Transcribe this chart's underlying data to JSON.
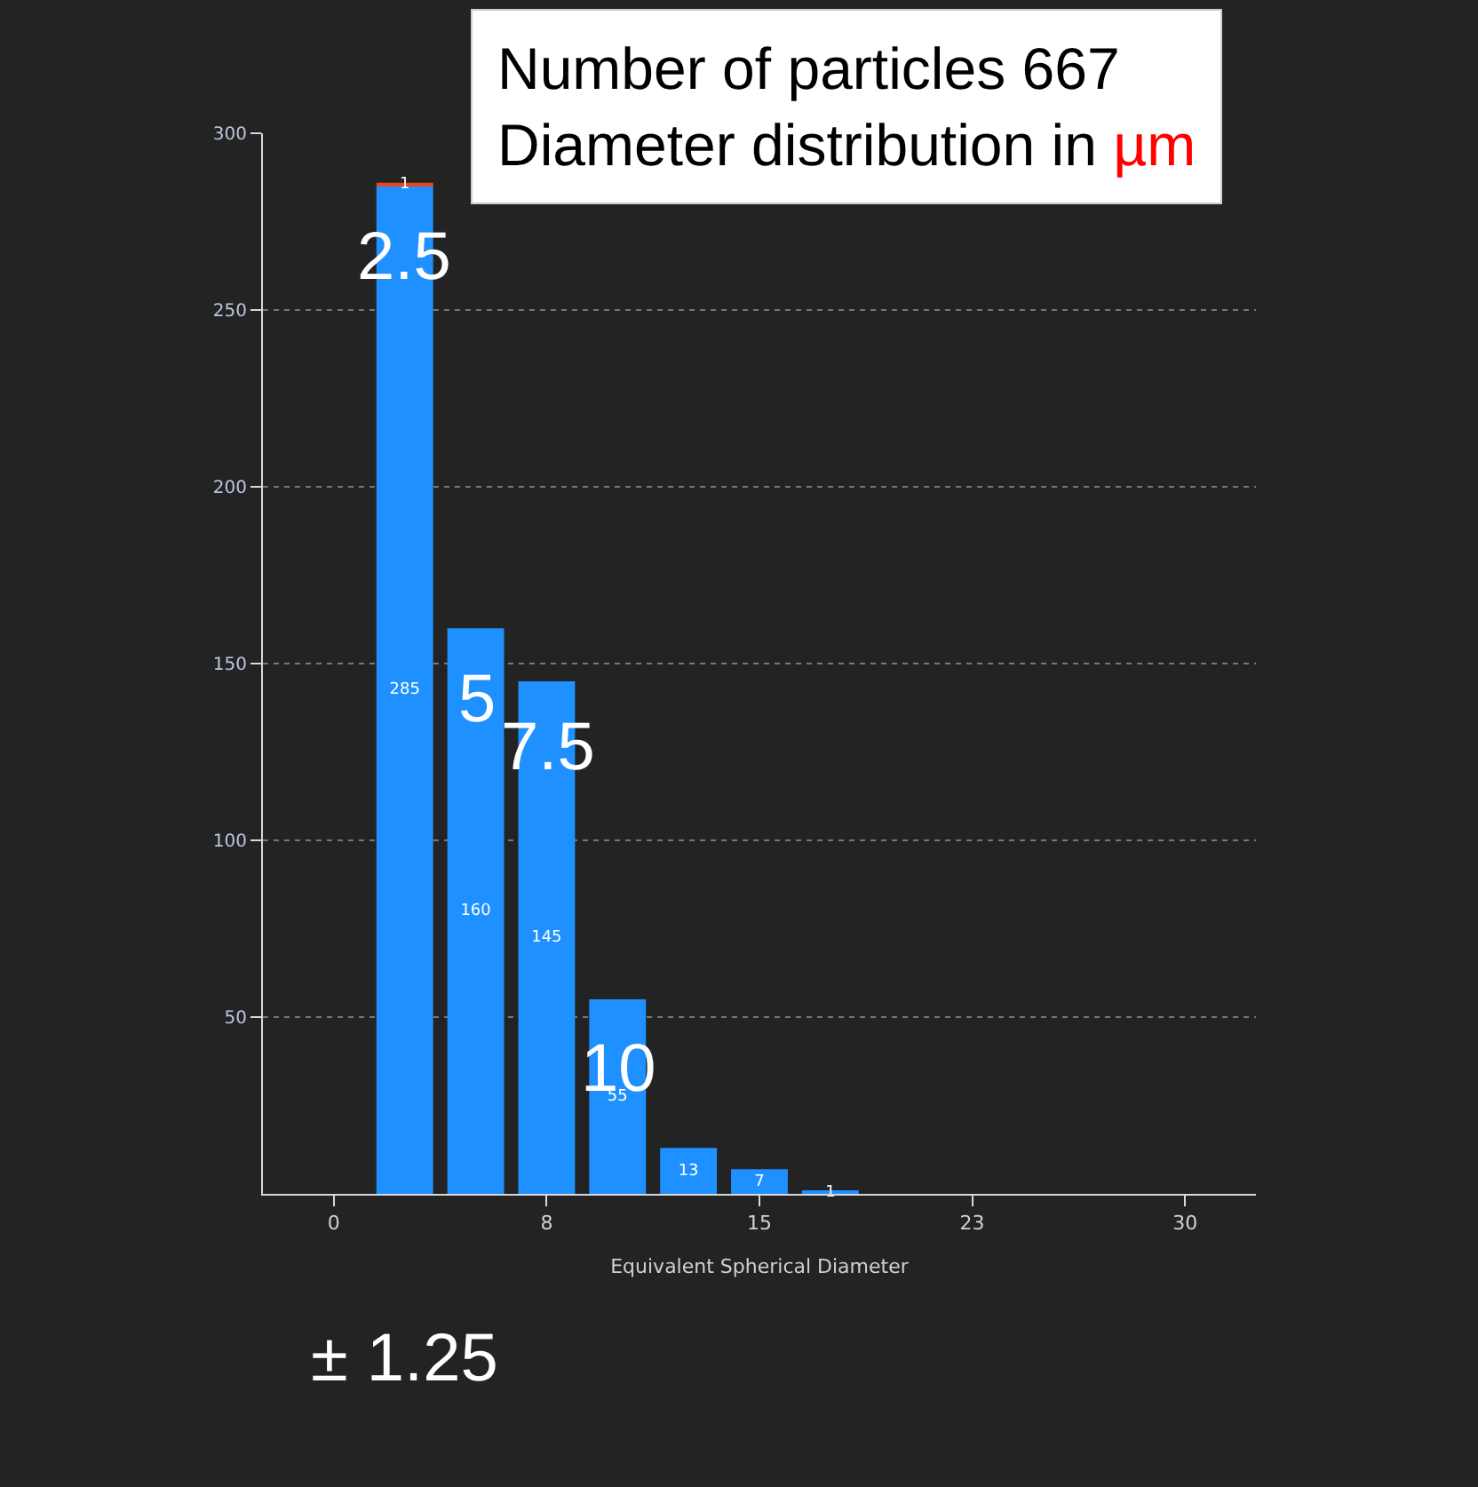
{
  "chart_data": {
    "type": "bar",
    "stacked": true,
    "title": "Number of particles 667",
    "subtitle": "Diameter distribution in µm",
    "xlabel": "Equivalent Spherical Diameter",
    "x": [
      2.5,
      5,
      7.5,
      10,
      12.5,
      15,
      17.5
    ],
    "series": [
      {
        "color": "#1e90ff",
        "values": [
          285,
          160,
          145,
          55,
          13,
          7,
          1
        ]
      },
      {
        "color": "#e8471c",
        "values": [
          1,
          null,
          null,
          null,
          null,
          null,
          null
        ]
      }
    ],
    "xlim": [
      -2.5,
      32.5
    ],
    "xticks": [
      0,
      {
        "value": 7.5,
        "label": "8"
      },
      15,
      {
        "value": 22.5,
        "label": "23"
      },
      30
    ],
    "ylim": [
      0,
      300
    ],
    "yticks": [
      50,
      100,
      150,
      200,
      250,
      300
    ],
    "grid": "y",
    "data_labels": true,
    "annotations": [
      "2.5",
      "5",
      "7.5",
      "10",
      "± 1.25"
    ]
  }
}
